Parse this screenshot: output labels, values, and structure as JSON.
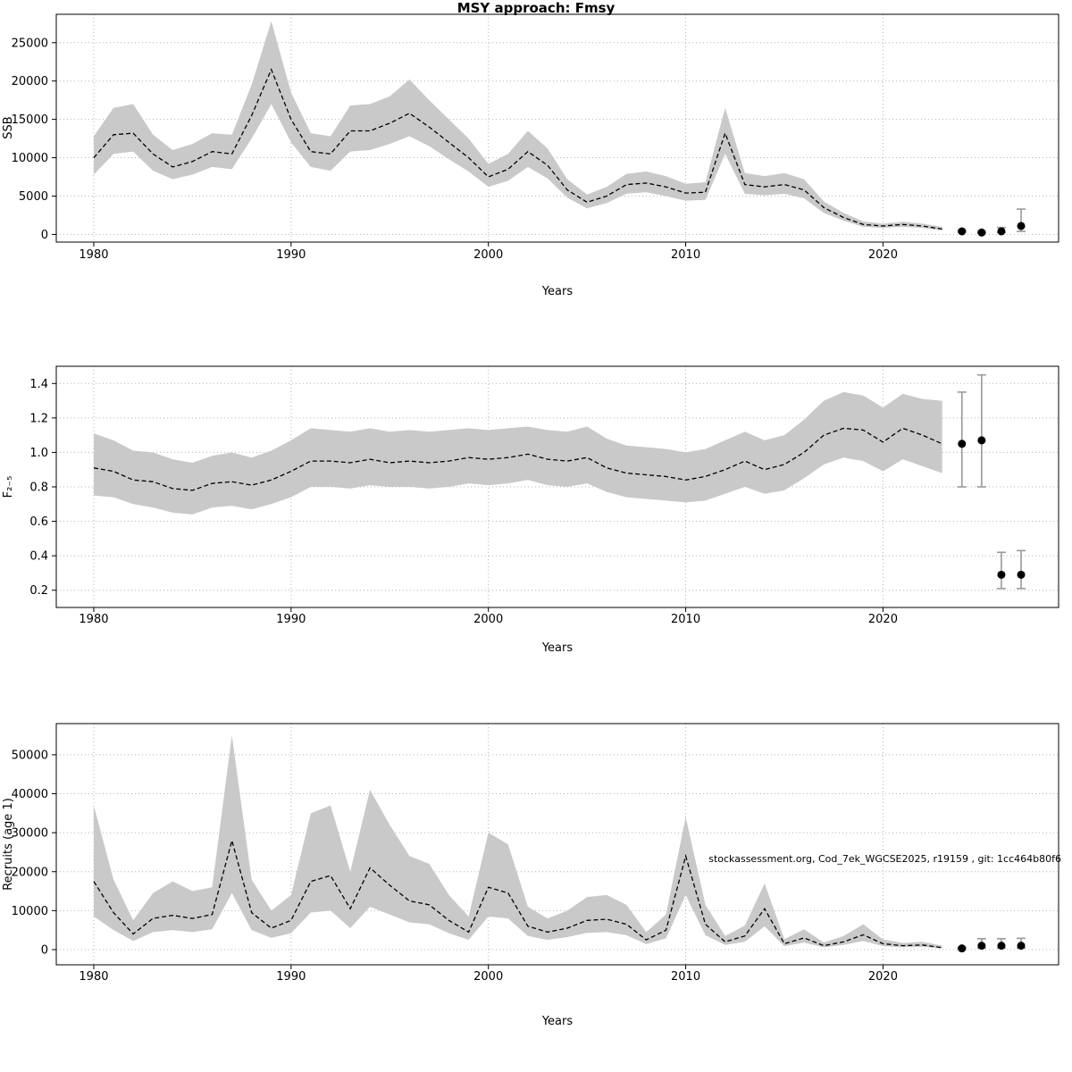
{
  "chart_data": {
    "type": "line",
    "title": "MSY approach: Fmsy",
    "caption": "stockassessment.org, Cod_7ek_WGCSE2025, r19159 , git: 1cc464b80f6",
    "x_label": "Years",
    "grid": "dotted",
    "legend_position": "none",
    "xlim": [
      1978.1,
      2028.9
    ],
    "xticks": [
      1980,
      1990,
      2000,
      2010,
      2020
    ],
    "years": [
      1980,
      1981,
      1982,
      1983,
      1984,
      1985,
      1986,
      1987,
      1988,
      1989,
      1990,
      1991,
      1992,
      1993,
      1994,
      1995,
      1996,
      1997,
      1998,
      1999,
      2000,
      2001,
      2002,
      2003,
      2004,
      2005,
      2006,
      2007,
      2008,
      2009,
      2010,
      2011,
      2012,
      2013,
      2014,
      2015,
      2016,
      2017,
      2018,
      2019,
      2020,
      2021,
      2022,
      2023
    ],
    "forecast_years": [
      2024,
      2025,
      2026,
      2027
    ],
    "panels": [
      {
        "name": "ssb",
        "ylabel": "SSB",
        "ylim": [
          -1000,
          28700
        ],
        "yticks": [
          0,
          5000,
          10000,
          15000,
          20000,
          25000
        ],
        "ytick_labels": [
          "0",
          "5000",
          "10000",
          "15000",
          "20000",
          "25000"
        ],
        "series": {
          "values": [
            10000,
            13000,
            13200,
            10500,
            8800,
            9500,
            10800,
            10500,
            15500,
            21500,
            15000,
            10800,
            10500,
            13500,
            13500,
            14500,
            15800,
            14000,
            12000,
            10000,
            7500,
            8500,
            10800,
            9000,
            5800,
            4200,
            5000,
            6500,
            6700,
            6200,
            5400,
            5500,
            13200,
            6500,
            6200,
            6500,
            5800,
            3500,
            2200,
            1300,
            1100,
            1300,
            1100,
            700
          ],
          "lower": [
            7800,
            10500,
            10800,
            8300,
            7200,
            7800,
            8800,
            8500,
            12500,
            17000,
            12000,
            8800,
            8300,
            10800,
            11000,
            11800,
            12800,
            11500,
            9800,
            8200,
            6200,
            7000,
            8800,
            7300,
            4800,
            3400,
            4100,
            5300,
            5500,
            5000,
            4400,
            4500,
            10500,
            5300,
            5100,
            5300,
            4700,
            2800,
            1800,
            1000,
            850,
            1000,
            850,
            500
          ],
          "upper": [
            12800,
            16500,
            17000,
            13000,
            11000,
            11800,
            13200,
            13000,
            19500,
            27800,
            18500,
            13200,
            12800,
            16800,
            17000,
            18000,
            20200,
            17500,
            15000,
            12500,
            9200,
            10500,
            13500,
            11200,
            7200,
            5200,
            6200,
            7900,
            8200,
            7600,
            6600,
            6800,
            16500,
            8000,
            7600,
            8000,
            7200,
            4300,
            2800,
            1700,
            1400,
            1650,
            1400,
            1000
          ]
        },
        "forecast": {
          "values": [
            400,
            250,
            400,
            1100
          ],
          "lower": [
            300,
            180,
            250,
            400
          ],
          "upper": [
            550,
            400,
            900,
            3300
          ]
        }
      },
      {
        "name": "f",
        "ylabel": "F₂₋₅",
        "ylim": [
          0.1,
          1.5
        ],
        "yticks": [
          0.2,
          0.4,
          0.6,
          0.8,
          1.0,
          1.2,
          1.4
        ],
        "ytick_labels": [
          "0.2",
          "0.4",
          "0.6",
          "0.8",
          "1.0",
          "1.2",
          "1.4"
        ],
        "series": {
          "values": [
            0.91,
            0.89,
            0.84,
            0.83,
            0.79,
            0.78,
            0.82,
            0.83,
            0.81,
            0.84,
            0.89,
            0.95,
            0.95,
            0.94,
            0.96,
            0.94,
            0.95,
            0.94,
            0.95,
            0.97,
            0.96,
            0.97,
            0.99,
            0.96,
            0.95,
            0.97,
            0.91,
            0.88,
            0.87,
            0.86,
            0.84,
            0.86,
            0.9,
            0.95,
            0.9,
            0.93,
            1.0,
            1.1,
            1.14,
            1.13,
            1.06,
            1.14,
            1.1,
            1.05
          ],
          "lower": [
            0.75,
            0.74,
            0.7,
            0.68,
            0.65,
            0.64,
            0.68,
            0.69,
            0.67,
            0.7,
            0.74,
            0.8,
            0.8,
            0.79,
            0.81,
            0.8,
            0.8,
            0.79,
            0.8,
            0.82,
            0.81,
            0.82,
            0.84,
            0.81,
            0.8,
            0.82,
            0.77,
            0.74,
            0.73,
            0.72,
            0.71,
            0.72,
            0.76,
            0.8,
            0.76,
            0.78,
            0.85,
            0.93,
            0.97,
            0.95,
            0.89,
            0.96,
            0.92,
            0.88
          ],
          "upper": [
            1.11,
            1.07,
            1.01,
            1.0,
            0.96,
            0.94,
            0.98,
            1.0,
            0.97,
            1.01,
            1.07,
            1.14,
            1.13,
            1.12,
            1.14,
            1.12,
            1.13,
            1.12,
            1.13,
            1.14,
            1.13,
            1.14,
            1.15,
            1.13,
            1.12,
            1.15,
            1.08,
            1.04,
            1.03,
            1.02,
            1.0,
            1.02,
            1.07,
            1.12,
            1.07,
            1.1,
            1.19,
            1.3,
            1.35,
            1.33,
            1.26,
            1.34,
            1.31,
            1.3
          ]
        },
        "forecast": {
          "values": [
            1.05,
            1.07,
            0.29,
            0.29
          ],
          "lower": [
            0.8,
            0.8,
            0.21,
            0.21
          ],
          "upper": [
            1.35,
            1.45,
            0.42,
            0.43
          ]
        }
      },
      {
        "name": "recruits",
        "ylabel": "Recruits (age 1)",
        "ylim": [
          -3900,
          58000
        ],
        "yticks": [
          0,
          10000,
          20000,
          30000,
          40000,
          50000
        ],
        "ytick_labels": [
          "0",
          "10000",
          "20000",
          "30000",
          "40000",
          "50000"
        ],
        "series": {
          "values": [
            17500,
            9500,
            4000,
            8000,
            8800,
            8000,
            9000,
            28000,
            9500,
            5500,
            7500,
            17500,
            19000,
            10500,
            21000,
            16500,
            12500,
            11500,
            7500,
            4500,
            16000,
            14500,
            6000,
            4500,
            5500,
            7500,
            7800,
            6500,
            2500,
            5000,
            24000,
            6500,
            2000,
            3500,
            10500,
            1500,
            3000,
            1000,
            2000,
            3800,
            1500,
            1000,
            1200,
            500
          ],
          "lower": [
            8500,
            5000,
            2200,
            4500,
            5000,
            4500,
            5200,
            14500,
            5000,
            3000,
            4200,
            9500,
            10000,
            5500,
            11000,
            9000,
            7000,
            6500,
            4200,
            2500,
            8500,
            8000,
            3500,
            2500,
            3200,
            4300,
            4500,
            3700,
            1400,
            2900,
            14000,
            3700,
            1200,
            2000,
            6000,
            900,
            1800,
            600,
            1200,
            2200,
            900,
            600,
            700,
            250
          ],
          "upper": [
            37000,
            18000,
            7500,
            14500,
            17500,
            15000,
            16000,
            55000,
            18000,
            10000,
            14000,
            35000,
            37000,
            20000,
            41000,
            32000,
            24000,
            22000,
            14000,
            8500,
            30000,
            27000,
            11000,
            8000,
            10000,
            13500,
            14000,
            11500,
            4500,
            9000,
            34000,
            11500,
            3500,
            6200,
            17000,
            2700,
            5200,
            1800,
            3500,
            6500,
            2600,
            1700,
            2000,
            1000
          ]
        },
        "forecast": {
          "values": [
            300,
            1000,
            1000,
            1000
          ],
          "lower": [
            150,
            400,
            400,
            400
          ],
          "upper": [
            600,
            2800,
            2800,
            2900
          ]
        }
      }
    ]
  }
}
